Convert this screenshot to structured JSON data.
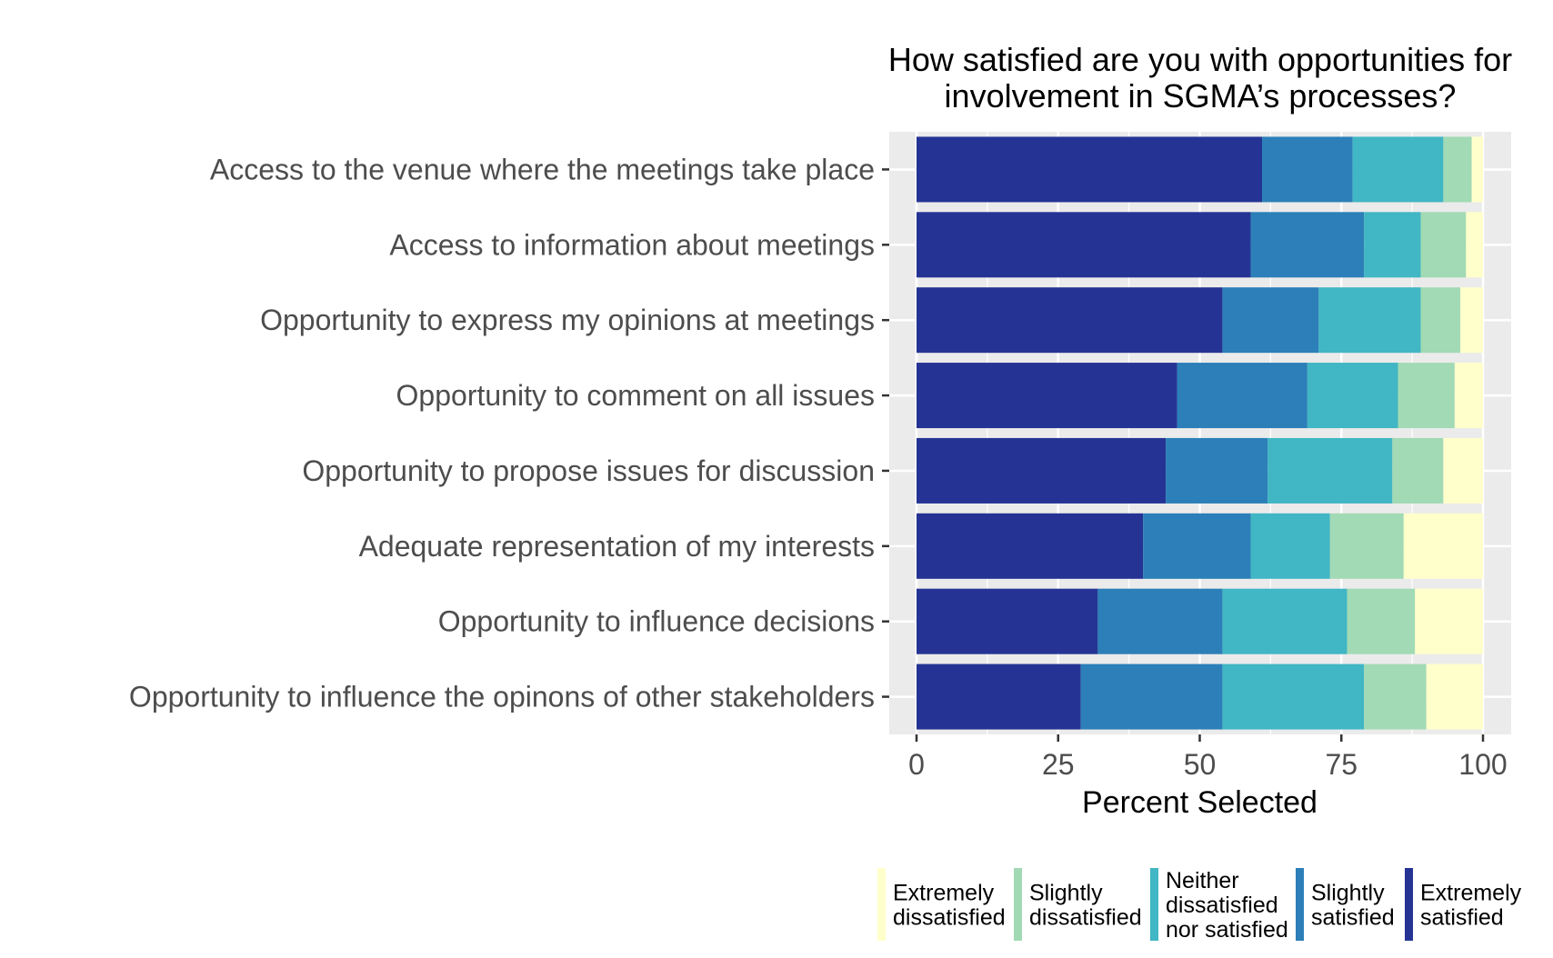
{
  "chart_data": {
    "type": "bar",
    "orientation": "horizontal",
    "stacked": true,
    "title": "How satisfied are you with opportunities for involvement in SGMA’s processes?",
    "title_lines": [
      "How satisfied are you with opportunities for",
      "involvement in SGMA’s processes?"
    ],
    "xlabel": "Percent Selected",
    "ylabel": "",
    "xlim": [
      0,
      100
    ],
    "xticks": [
      0,
      25,
      50,
      75,
      100
    ],
    "grid": true,
    "legend_position": "bottom",
    "categories": [
      "Access to the venue where the meetings take place",
      "Access to information about meetings",
      "Opportunity to express my opinions at meetings",
      "Opportunity to comment on all issues",
      "Opportunity to propose issues for discussion",
      "Adequate representation of my interests",
      "Opportunity to influence decisions",
      "Opportunity to influence the opinons of other stakeholders"
    ],
    "series": [
      {
        "name": "Extremely satisfied",
        "legend_lines": [
          "Extremely",
          "satisfied"
        ],
        "color": "#253494",
        "values": [
          61,
          59,
          54,
          46,
          44,
          40,
          32,
          29
        ]
      },
      {
        "name": "Slightly satisfied",
        "legend_lines": [
          "Slightly",
          "satisfied"
        ],
        "color": "#2c7fb8",
        "values": [
          16,
          20,
          17,
          23,
          18,
          19,
          22,
          25
        ]
      },
      {
        "name": "Neither dissatisfied nor satisfied",
        "legend_lines": [
          "Neither",
          "dissatisfied",
          "nor satisfied"
        ],
        "color": "#41b6c4",
        "values": [
          16,
          10,
          18,
          16,
          22,
          14,
          22,
          25
        ]
      },
      {
        "name": "Slightly dissatisfied",
        "legend_lines": [
          "Slightly",
          "dissatisfied"
        ],
        "color": "#a1dab4",
        "values": [
          5,
          8,
          7,
          10,
          9,
          13,
          12,
          11
        ]
      },
      {
        "name": "Extremely dissatisfied",
        "legend_lines": [
          "Extremely",
          "dissatisfied"
        ],
        "color": "#ffffcc",
        "values": [
          2,
          3,
          4,
          5,
          7,
          14,
          12,
          10
        ]
      }
    ],
    "legend_order": [
      "Extremely dissatisfied",
      "Slightly dissatisfied",
      "Neither dissatisfied nor satisfied",
      "Slightly satisfied",
      "Extremely satisfied"
    ]
  }
}
